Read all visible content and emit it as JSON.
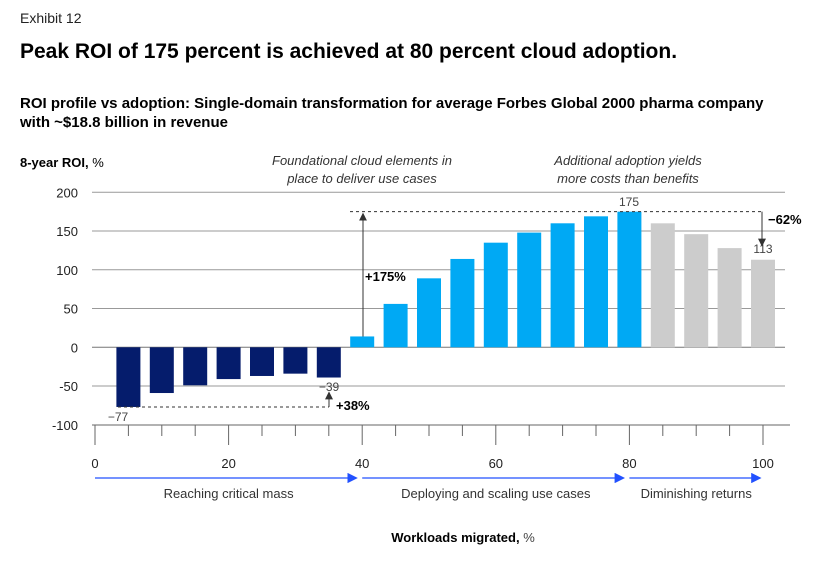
{
  "header": {
    "exhibit": "Exhibit 12",
    "title": "Peak ROI of 175 percent is achieved at 80 percent cloud adoption.",
    "subtitle": "ROI profile vs adoption: Single-domain transformation for average Forbes Global 2000 pharma company with ~$18.8 billion in revenue"
  },
  "chart_data": {
    "type": "bar",
    "ylabel_bold": "8-year ROI,",
    "ylabel_unit": " %",
    "xlabel_bold": "Workloads migrated,",
    "xlabel_unit": " %",
    "x": [
      5,
      10,
      15,
      20,
      25,
      30,
      35,
      40,
      45,
      50,
      55,
      60,
      65,
      70,
      75,
      80,
      85,
      90,
      95,
      100
    ],
    "values": [
      -77,
      -59,
      -49,
      -41,
      -37,
      -34,
      -39,
      14,
      56,
      89,
      114,
      135,
      148,
      160,
      169,
      175,
      160,
      146,
      128,
      113
    ],
    "phases": [
      "navy",
      "navy",
      "navy",
      "navy",
      "navy",
      "navy",
      "navy",
      "blue",
      "blue",
      "blue",
      "blue",
      "blue",
      "blue",
      "blue",
      "blue",
      "blue",
      "gray",
      "gray",
      "gray",
      "gray"
    ],
    "colors": {
      "navy": "#051c6c",
      "blue": "#00a9f4",
      "gray": "#cccccc",
      "arrow": "#2251ff"
    },
    "xlim": [
      0,
      100
    ],
    "ylim": [
      -100,
      200
    ],
    "yticks": [
      "200",
      "150",
      "100",
      "50",
      "0",
      "-50",
      "-100"
    ],
    "ytick_values": [
      200,
      150,
      100,
      50,
      0,
      -50,
      -100
    ],
    "xticks": [
      "0",
      "20",
      "40",
      "60",
      "80",
      "100"
    ],
    "xtick_values": [
      0,
      20,
      40,
      60,
      80,
      100
    ],
    "grid": true,
    "data_labels": {
      "first": "−77",
      "seventh": "−39",
      "peak": "175",
      "last": "113"
    },
    "annotations": {
      "plus38": "+38%",
      "plus175": "+175%",
      "minus62": "−62%",
      "foundational_1": "Foundational cloud elements in",
      "foundational_2": "place to deliver use cases",
      "additional_1": "Additional adoption yields",
      "additional_2": "more costs than benefits"
    },
    "stages": [
      {
        "label": "Reaching critical mass",
        "from": 0,
        "to": 40
      },
      {
        "label": "Deploying and scaling use cases",
        "from": 40,
        "to": 80
      },
      {
        "label": "Diminishing returns",
        "from": 80,
        "to": 100
      }
    ]
  }
}
